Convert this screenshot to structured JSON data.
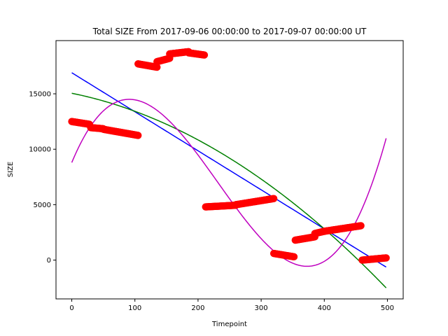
{
  "chart_data": {
    "type": "scatter",
    "title": "Total SIZE From 2017-09-06 00:00:00 to 2017-09-07 00:00:00 UT",
    "xlabel": "Timepoint",
    "ylabel": "SIZE",
    "xlim": [
      -25,
      525
    ],
    "ylim": [
      -3500,
      19800
    ],
    "x_ticks": [
      0,
      100,
      200,
      300,
      400,
      500
    ],
    "y_ticks": [
      0,
      5000,
      10000,
      15000
    ],
    "grid": false,
    "legend": "none",
    "scatter_color": "#ff0000",
    "scatter_segments": [
      {
        "x_start": 0,
        "x_end": 28,
        "y_start": 12500,
        "y_end": 12250
      },
      {
        "x_start": 30,
        "x_end": 50,
        "y_start": 11950,
        "y_end": 11850
      },
      {
        "x_start": 50,
        "x_end": 105,
        "y_start": 11800,
        "y_end": 11250
      },
      {
        "x_start": 105,
        "x_end": 135,
        "y_start": 17700,
        "y_end": 17400
      },
      {
        "x_start": 135,
        "x_end": 155,
        "y_start": 17900,
        "y_end": 18200
      },
      {
        "x_start": 155,
        "x_end": 185,
        "y_start": 18600,
        "y_end": 18800
      },
      {
        "x_start": 185,
        "x_end": 210,
        "y_start": 18700,
        "y_end": 18500
      },
      {
        "x_start": 212,
        "x_end": 260,
        "y_start": 4800,
        "y_end": 4950
      },
      {
        "x_start": 260,
        "x_end": 320,
        "y_start": 5000,
        "y_end": 5550
      },
      {
        "x_start": 320,
        "x_end": 352,
        "y_start": 600,
        "y_end": 300
      },
      {
        "x_start": 354,
        "x_end": 385,
        "y_start": 1800,
        "y_end": 2100
      },
      {
        "x_start": 385,
        "x_end": 400,
        "y_start": 2400,
        "y_end": 2600
      },
      {
        "x_start": 400,
        "x_end": 458,
        "y_start": 2600,
        "y_end": 3100
      },
      {
        "x_start": 460,
        "x_end": 498,
        "y_start": 0,
        "y_end": 200
      }
    ],
    "fit_lines": [
      {
        "color": "#0000ff",
        "kind": "linear",
        "coeffs": [
          16900,
          -35.2
        ]
      },
      {
        "color": "#008000",
        "kind": "quadratic",
        "coeffs": [
          15050,
          -11.5,
          -0.0477
        ]
      },
      {
        "color": "#bf00bf",
        "kind": "cubic",
        "coeffs": [
          8800,
          136.6,
          -0.9348,
          0.001344
        ]
      }
    ],
    "fit_x_range": [
      0,
      498
    ]
  }
}
